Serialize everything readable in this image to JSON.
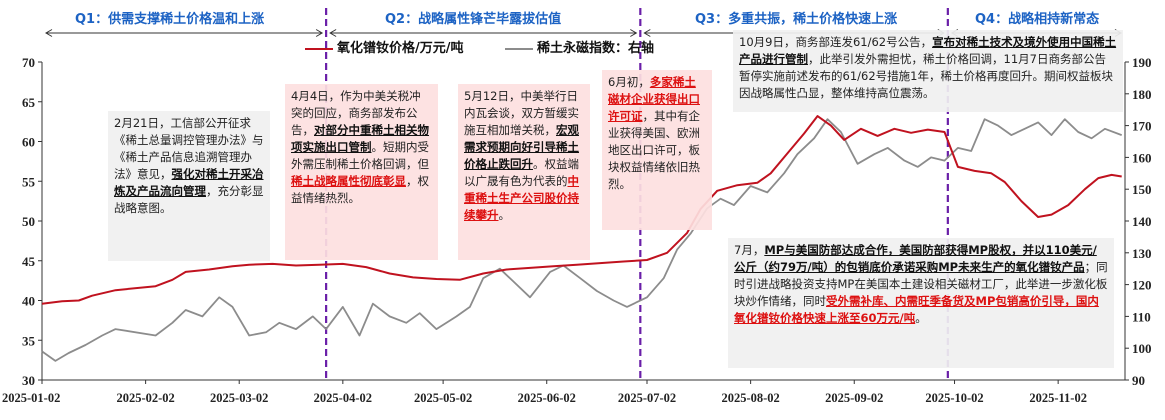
{
  "phases": [
    {
      "label": "Q1：供需支撑稀土价格温和上涨"
    },
    {
      "label": "Q2：战略属性锋芒毕露拔估值"
    },
    {
      "label": "Q3：多重共振，稀土价格快速上涨"
    },
    {
      "label": "Q4：战略相持新常态"
    }
  ],
  "legend": {
    "series1": "氧化镨钕价格/万元/吨",
    "series2": "稀土永磁指数：右轴"
  },
  "annotations": {
    "a1": {
      "pre": "2月21日，工信部公开征求《稀土总量调控管理办法》与《稀土产品信息追溯管理办法》意见，",
      "bold": "强化对稀土开采冶炼及产品流向管理",
      "post": "，充分彰显战略意图。"
    },
    "a2": {
      "pre": "4月4日，作为中美关税冲突的回应，商务部发布公告，",
      "bold": "对部分中重稀土相关物项实施出口管制",
      "mid": "。短期内受外需压制稀土价格回调，但",
      "bold2": "稀土战略属性彻底彰显",
      "post": "，权益情绪热烈。"
    },
    "a3": {
      "pre": "5月12日，中美举行日内瓦会谈，双方暂缓实施互相加增关税，",
      "bold": "宏观需求预期向好引导稀土价格止跌回升",
      "mid": "。权益端以广晟有色为代表的",
      "bold2": "中重稀土生产公司股价持续攀升",
      "post": "。"
    },
    "a4": {
      "pre": "6月初，",
      "bold": "多家稀土磁材企业获得出口许可证",
      "post": "，其中有企业获得美国、欧洲地区出口许可，板块权益情绪依旧热烈。"
    },
    "a5": {
      "pre": "10月9日，商务部连发61/62号公告，",
      "bold": "宣布对稀土技术及境外使用中国稀土产品进行管制",
      "post": "，此举引发外需担忧，稀土价格回调，11月7日商务部公告暂停实施前述发布的61/62号措施1年，稀土价格再度回升。期间权益板块因战略属性凸显，整体维持高位震荡。"
    },
    "a6": {
      "pre": "7月，",
      "bold": "MP与美国防部达成合作，美国防部获得MP股权，并以110美元/公斤（约79万/吨）的包销底价承诺采购MP未来生产的氧化镨钕产品",
      "mid": "；同时引进战略投资支持MP在美国本土建设相关磁材工厂，此举进一步激化板块炒作情绪，同时",
      "bold2": "受外需补库、内需旺季备货及MP包销高价引导，国内氧化镨钕价格快速上涨至60万元/吨",
      "post": "。"
    }
  },
  "chart_data": {
    "type": "line",
    "x_tick_labels": [
      "2025-01-02",
      "2025-02-02",
      "2025-03-02",
      "2025-04-02",
      "2025-05-02",
      "2025-06-02",
      "2025-07-02",
      "2025-08-02",
      "2025-09-02",
      "2025-10-02",
      "2025-11-02"
    ],
    "ylim_left": [
      30,
      70
    ],
    "yticks_left": [
      30,
      35,
      40,
      45,
      50,
      55,
      60,
      65,
      70
    ],
    "ylim_right": [
      90,
      190
    ],
    "yticks_right": [
      90,
      100,
      110,
      120,
      130,
      140,
      150,
      160,
      170,
      180,
      190
    ],
    "phase_dividers": [
      "2025-03-28",
      "2025-06-30",
      "2025-09-30"
    ],
    "series": [
      {
        "name": "氧化镨钕价格/万元/吨",
        "axis": "left",
        "color": "#c0121f",
        "points": [
          [
            "2025-01-02",
            39.6
          ],
          [
            "2025-01-08",
            39.9
          ],
          [
            "2025-01-13",
            40.0
          ],
          [
            "2025-01-17",
            40.6
          ],
          [
            "2025-01-24",
            41.3
          ],
          [
            "2025-02-05",
            41.8
          ],
          [
            "2025-02-10",
            42.6
          ],
          [
            "2025-02-14",
            43.6
          ],
          [
            "2025-02-21",
            43.9
          ],
          [
            "2025-02-28",
            44.3
          ],
          [
            "2025-03-05",
            44.5
          ],
          [
            "2025-03-12",
            44.6
          ],
          [
            "2025-03-19",
            44.4
          ],
          [
            "2025-03-26",
            44.5
          ],
          [
            "2025-04-02",
            44.6
          ],
          [
            "2025-04-09",
            44.2
          ],
          [
            "2025-04-16",
            43.4
          ],
          [
            "2025-04-23",
            42.9
          ],
          [
            "2025-04-30",
            42.7
          ],
          [
            "2025-05-07",
            42.6
          ],
          [
            "2025-05-14",
            43.4
          ],
          [
            "2025-05-21",
            43.9
          ],
          [
            "2025-05-28",
            44.1
          ],
          [
            "2025-06-04",
            44.3
          ],
          [
            "2025-06-11",
            44.5
          ],
          [
            "2025-06-18",
            44.7
          ],
          [
            "2025-06-25",
            44.9
          ],
          [
            "2025-07-02",
            45.1
          ],
          [
            "2025-07-08",
            46.0
          ],
          [
            "2025-07-14",
            48.5
          ],
          [
            "2025-07-18",
            51.5
          ],
          [
            "2025-07-23",
            53.8
          ],
          [
            "2025-07-29",
            54.5
          ],
          [
            "2025-08-04",
            54.8
          ],
          [
            "2025-08-08",
            56.0
          ],
          [
            "2025-08-13",
            58.5
          ],
          [
            "2025-08-18",
            61.0
          ],
          [
            "2025-08-22",
            63.2
          ],
          [
            "2025-08-26",
            62.0
          ],
          [
            "2025-08-30",
            60.2
          ],
          [
            "2025-09-04",
            61.6
          ],
          [
            "2025-09-09",
            60.7
          ],
          [
            "2025-09-14",
            61.6
          ],
          [
            "2025-09-19",
            61.1
          ],
          [
            "2025-09-24",
            61.5
          ],
          [
            "2025-09-29",
            61.2
          ],
          [
            "2025-10-03",
            56.8
          ],
          [
            "2025-10-08",
            56.3
          ],
          [
            "2025-10-13",
            56.0
          ],
          [
            "2025-10-17",
            54.9
          ],
          [
            "2025-10-22",
            52.5
          ],
          [
            "2025-10-27",
            50.5
          ],
          [
            "2025-10-31",
            50.8
          ],
          [
            "2025-11-05",
            52.0
          ],
          [
            "2025-11-10",
            54.0
          ],
          [
            "2025-11-14",
            55.4
          ],
          [
            "2025-11-18",
            55.8
          ],
          [
            "2025-11-21",
            55.6
          ]
        ]
      },
      {
        "name": "稀土永磁指数：右轴",
        "axis": "right",
        "color": "#8c8c8c",
        "points": [
          [
            "2025-01-02",
            99.0
          ],
          [
            "2025-01-06",
            96.0
          ],
          [
            "2025-01-10",
            98.5
          ],
          [
            "2025-01-15",
            101.0
          ],
          [
            "2025-01-20",
            104.0
          ],
          [
            "2025-01-24",
            106.0
          ],
          [
            "2025-02-05",
            104.0
          ],
          [
            "2025-02-10",
            108.0
          ],
          [
            "2025-02-14",
            112.0
          ],
          [
            "2025-02-19",
            110.0
          ],
          [
            "2025-02-24",
            116.0
          ],
          [
            "2025-02-28",
            113.0
          ],
          [
            "2025-03-05",
            104.0
          ],
          [
            "2025-03-10",
            105.0
          ],
          [
            "2025-03-14",
            108.0
          ],
          [
            "2025-03-19",
            106.0
          ],
          [
            "2025-03-24",
            110.0
          ],
          [
            "2025-03-28",
            106.0
          ],
          [
            "2025-04-02",
            113.0
          ],
          [
            "2025-04-07",
            104.0
          ],
          [
            "2025-04-11",
            114.0
          ],
          [
            "2025-04-16",
            110.0
          ],
          [
            "2025-04-21",
            108.0
          ],
          [
            "2025-04-25",
            111.0
          ],
          [
            "2025-04-30",
            106.0
          ],
          [
            "2025-05-06",
            110.0
          ],
          [
            "2025-05-10",
            113.0
          ],
          [
            "2025-05-14",
            122.0
          ],
          [
            "2025-05-19",
            125.0
          ],
          [
            "2025-05-23",
            121.0
          ],
          [
            "2025-05-28",
            116.0
          ],
          [
            "2025-06-03",
            124.0
          ],
          [
            "2025-06-07",
            126.0
          ],
          [
            "2025-06-12",
            122.0
          ],
          [
            "2025-06-17",
            118.0
          ],
          [
            "2025-06-22",
            115.0
          ],
          [
            "2025-06-26",
            113.0
          ],
          [
            "2025-07-02",
            116.0
          ],
          [
            "2025-07-07",
            122.0
          ],
          [
            "2025-07-11",
            131.0
          ],
          [
            "2025-07-15",
            136.0
          ],
          [
            "2025-07-20",
            144.0
          ],
          [
            "2025-07-24",
            147.0
          ],
          [
            "2025-07-28",
            145.0
          ],
          [
            "2025-08-02",
            151.0
          ],
          [
            "2025-08-07",
            149.0
          ],
          [
            "2025-08-12",
            155.0
          ],
          [
            "2025-08-16",
            161.0
          ],
          [
            "2025-08-21",
            166.0
          ],
          [
            "2025-08-25",
            172.0
          ],
          [
            "2025-08-29",
            168.0
          ],
          [
            "2025-09-03",
            158.0
          ],
          [
            "2025-09-08",
            161.0
          ],
          [
            "2025-09-12",
            163.0
          ],
          [
            "2025-09-17",
            159.0
          ],
          [
            "2025-09-21",
            157.0
          ],
          [
            "2025-09-25",
            160.0
          ],
          [
            "2025-09-29",
            159.0
          ],
          [
            "2025-10-03",
            163.0
          ],
          [
            "2025-10-07",
            162.0
          ],
          [
            "2025-10-11",
            172.0
          ],
          [
            "2025-10-15",
            170.0
          ],
          [
            "2025-10-19",
            167.0
          ],
          [
            "2025-10-23",
            169.0
          ],
          [
            "2025-10-27",
            171.0
          ],
          [
            "2025-10-31",
            167.0
          ],
          [
            "2025-11-04",
            172.0
          ],
          [
            "2025-11-08",
            168.0
          ],
          [
            "2025-11-12",
            166.0
          ],
          [
            "2025-11-16",
            169.0
          ],
          [
            "2025-11-21",
            167.0
          ]
        ]
      }
    ],
    "grid": false
  }
}
